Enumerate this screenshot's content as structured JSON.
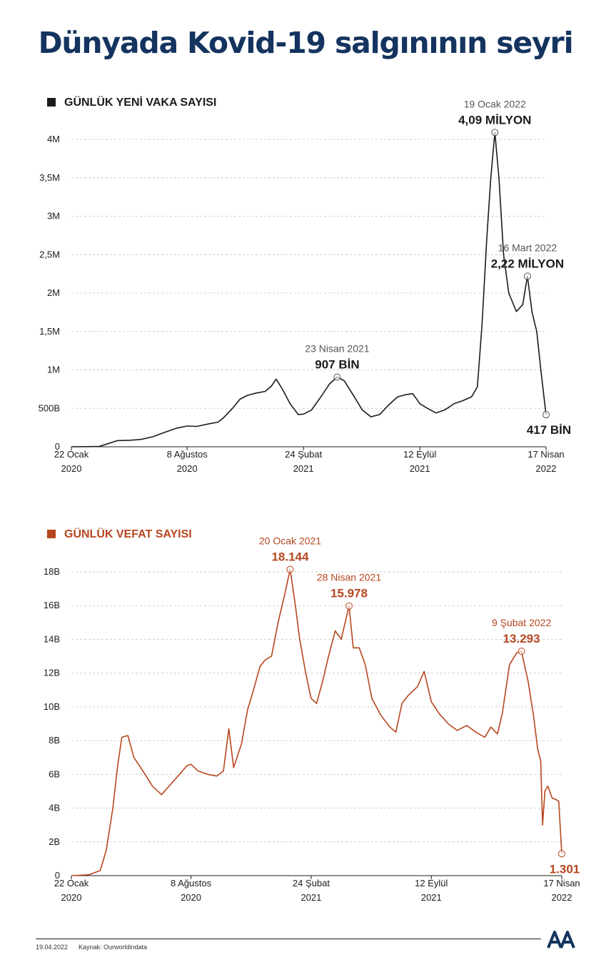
{
  "title": "Dünyada Kovid-19 salgınının seyri",
  "colors": {
    "title": "#14345f",
    "cases": "#1b1b1b",
    "deaths": "#b7461f",
    "grid": "#cfcfcf"
  },
  "chart_data": [
    {
      "type": "line",
      "title": "GÜNLÜK YENİ VAKA SAYISI",
      "color": "#1b1b1b",
      "y_ticks": [
        {
          "value": 0,
          "label": "0"
        },
        {
          "value": 500000,
          "label": "500B"
        },
        {
          "value": 1000000,
          "label": "1M"
        },
        {
          "value": 1500000,
          "label": "1,5M"
        },
        {
          "value": 2000000,
          "label": "2M"
        },
        {
          "value": 2500000,
          "label": "2,5M"
        },
        {
          "value": 3000000,
          "label": "3M"
        },
        {
          "value": 3500000,
          "label": "3,5M"
        },
        {
          "value": 4000000,
          "label": "4M"
        }
      ],
      "ylim": [
        0,
        4000000
      ],
      "xlim": [
        "2020-01-22",
        "2022-04-17"
      ],
      "x_ticks": [
        {
          "date": "2020-01-22",
          "line1": "22 Ocak",
          "line2": "2020"
        },
        {
          "date": "2020-08-08",
          "line1": "8 Ağustos",
          "line2": "2020"
        },
        {
          "date": "2021-02-24",
          "line1": "24 Şubat",
          "line2": "2021"
        },
        {
          "date": "2021-09-12",
          "line1": "12 Eylül",
          "line2": "2021"
        },
        {
          "date": "2022-04-17",
          "line1": "17 Nisan",
          "line2": "2022"
        }
      ],
      "annotations": [
        {
          "date_text": "23 Nisan 2021",
          "value_text": "907 BİN",
          "x": "2021-04-23",
          "y": 907000,
          "pos": "above"
        },
        {
          "date_text": "19 Ocak 2022",
          "value_text": "4,09 MİLYON",
          "x": "2022-01-19",
          "y": 4090000,
          "pos": "above"
        },
        {
          "date_text": "16 Mart 2022",
          "value_text": "2,22 MİLYON",
          "x": "2022-03-16",
          "y": 2220000,
          "pos": "above"
        },
        {
          "date_text": "",
          "value_text": "417 BİN",
          "x": "2022-04-17",
          "y": 417000,
          "pos": "below"
        }
      ],
      "points": [
        [
          "2020-01-22",
          0
        ],
        [
          "2020-02-20",
          2000
        ],
        [
          "2020-03-10",
          5000
        ],
        [
          "2020-03-25",
          40000
        ],
        [
          "2020-04-10",
          80000
        ],
        [
          "2020-05-01",
          85000
        ],
        [
          "2020-05-20",
          95000
        ],
        [
          "2020-06-10",
          130000
        ],
        [
          "2020-07-01",
          190000
        ],
        [
          "2020-07-20",
          240000
        ],
        [
          "2020-08-08",
          270000
        ],
        [
          "2020-08-25",
          265000
        ],
        [
          "2020-09-15",
          300000
        ],
        [
          "2020-09-30",
          320000
        ],
        [
          "2020-10-10",
          380000
        ],
        [
          "2020-10-25",
          500000
        ],
        [
          "2020-11-07",
          620000
        ],
        [
          "2020-11-20",
          670000
        ],
        [
          "2020-12-05",
          700000
        ],
        [
          "2020-12-20",
          720000
        ],
        [
          "2020-12-31",
          790000
        ],
        [
          "2021-01-08",
          880000
        ],
        [
          "2021-01-18",
          760000
        ],
        [
          "2021-02-01",
          560000
        ],
        [
          "2021-02-15",
          420000
        ],
        [
          "2021-02-24",
          425000
        ],
        [
          "2021-03-10",
          480000
        ],
        [
          "2021-03-25",
          640000
        ],
        [
          "2021-04-10",
          820000
        ],
        [
          "2021-04-23",
          907000
        ],
        [
          "2021-05-05",
          860000
        ],
        [
          "2021-05-20",
          680000
        ],
        [
          "2021-06-05",
          480000
        ],
        [
          "2021-06-20",
          390000
        ],
        [
          "2021-07-05",
          420000
        ],
        [
          "2021-07-20",
          540000
        ],
        [
          "2021-08-05",
          650000
        ],
        [
          "2021-08-20",
          680000
        ],
        [
          "2021-08-31",
          690000
        ],
        [
          "2021-09-12",
          560000
        ],
        [
          "2021-09-25",
          500000
        ],
        [
          "2021-10-10",
          440000
        ],
        [
          "2021-10-25",
          480000
        ],
        [
          "2021-11-10",
          560000
        ],
        [
          "2021-11-25",
          600000
        ],
        [
          "2021-12-10",
          650000
        ],
        [
          "2021-12-20",
          780000
        ],
        [
          "2021-12-28",
          1600000
        ],
        [
          "2022-01-05",
          2700000
        ],
        [
          "2022-01-12",
          3500000
        ],
        [
          "2022-01-19",
          4090000
        ],
        [
          "2022-01-26",
          3500000
        ],
        [
          "2022-02-03",
          2500000
        ],
        [
          "2022-02-12",
          2000000
        ],
        [
          "2022-02-25",
          1760000
        ],
        [
          "2022-03-08",
          1850000
        ],
        [
          "2022-03-16",
          2220000
        ],
        [
          "2022-03-24",
          1750000
        ],
        [
          "2022-04-01",
          1500000
        ],
        [
          "2022-04-08",
          1000000
        ],
        [
          "2022-04-17",
          417000
        ]
      ]
    },
    {
      "type": "line",
      "title": "GÜNLÜK VEFAT SAYISI",
      "color": "#b7461f",
      "y_ticks": [
        {
          "value": 0,
          "label": "0"
        },
        {
          "value": 2000,
          "label": "2B"
        },
        {
          "value": 4000,
          "label": "4B"
        },
        {
          "value": 6000,
          "label": "6B"
        },
        {
          "value": 8000,
          "label": "8B"
        },
        {
          "value": 10000,
          "label": "10B"
        },
        {
          "value": 12000,
          "label": "12B"
        },
        {
          "value": 14000,
          "label": "14B"
        },
        {
          "value": 16000,
          "label": "16B"
        },
        {
          "value": 18000,
          "label": "18B"
        }
      ],
      "ylim": [
        0,
        18000
      ],
      "xlim": [
        "2020-01-22",
        "2022-04-17"
      ],
      "x_ticks": [
        {
          "date": "2020-01-22",
          "line1": "22 Ocak",
          "line2": "2020"
        },
        {
          "date": "2020-08-08",
          "line1": "8 Ağustos",
          "line2": "2020"
        },
        {
          "date": "2021-02-24",
          "line1": "24 Şubat",
          "line2": "2021"
        },
        {
          "date": "2021-09-12",
          "line1": "12 Eylül",
          "line2": "2021"
        },
        {
          "date": "2022-04-17",
          "line1": "17 Nisan",
          "line2": "2022"
        }
      ],
      "annotations": [
        {
          "date_text": "20 Ocak 2021",
          "value_text": "18.144",
          "x": "2021-01-20",
          "y": 18144,
          "pos": "above"
        },
        {
          "date_text": "28 Nisan 2021",
          "value_text": "15.978",
          "x": "2021-04-28",
          "y": 15978,
          "pos": "above"
        },
        {
          "date_text": "9 Şubat 2022",
          "value_text": "13.293",
          "x": "2022-02-09",
          "y": 13293,
          "pos": "above"
        },
        {
          "date_text": "",
          "value_text": "1.301",
          "x": "2022-04-17",
          "y": 1301,
          "pos": "below"
        }
      ],
      "points": [
        [
          "2020-01-22",
          0
        ],
        [
          "2020-02-20",
          50
        ],
        [
          "2020-03-10",
          300
        ],
        [
          "2020-03-20",
          1500
        ],
        [
          "2020-03-31",
          4000
        ],
        [
          "2020-04-08",
          6500
        ],
        [
          "2020-04-15",
          8200
        ],
        [
          "2020-04-25",
          8300
        ],
        [
          "2020-05-05",
          7000
        ],
        [
          "2020-05-20",
          6200
        ],
        [
          "2020-06-05",
          5300
        ],
        [
          "2020-06-20",
          4800
        ],
        [
          "2020-07-05",
          5400
        ],
        [
          "2020-07-20",
          6000
        ],
        [
          "2020-08-01",
          6500
        ],
        [
          "2020-08-08",
          6600
        ],
        [
          "2020-08-20",
          6200
        ],
        [
          "2020-09-05",
          6000
        ],
        [
          "2020-09-20",
          5900
        ],
        [
          "2020-10-01",
          6200
        ],
        [
          "2020-10-10",
          8700
        ],
        [
          "2020-10-18",
          6400
        ],
        [
          "2020-10-31",
          7800
        ],
        [
          "2020-11-10",
          9800
        ],
        [
          "2020-11-20",
          11000
        ],
        [
          "2020-12-01",
          12400
        ],
        [
          "2020-12-10",
          12800
        ],
        [
          "2020-12-20",
          13000
        ],
        [
          "2020-12-31",
          15000
        ],
        [
          "2021-01-10",
          16500
        ],
        [
          "2021-01-20",
          18144
        ],
        [
          "2021-01-28",
          16200
        ],
        [
          "2021-02-05",
          14000
        ],
        [
          "2021-02-15",
          12000
        ],
        [
          "2021-02-24",
          10500
        ],
        [
          "2021-03-05",
          10200
        ],
        [
          "2021-03-15",
          11500
        ],
        [
          "2021-03-25",
          13000
        ],
        [
          "2021-04-05",
          14500
        ],
        [
          "2021-04-15",
          14000
        ],
        [
          "2021-04-28",
          15978
        ],
        [
          "2021-05-05",
          13500
        ],
        [
          "2021-05-15",
          13500
        ],
        [
          "2021-05-25",
          12500
        ],
        [
          "2021-06-05",
          10500
        ],
        [
          "2021-06-20",
          9500
        ],
        [
          "2021-07-05",
          8800
        ],
        [
          "2021-07-15",
          8500
        ],
        [
          "2021-07-25",
          10200
        ],
        [
          "2021-08-05",
          10700
        ],
        [
          "2021-08-20",
          11200
        ],
        [
          "2021-08-31",
          12100
        ],
        [
          "2021-09-12",
          10300
        ],
        [
          "2021-09-25",
          9600
        ],
        [
          "2021-10-10",
          9000
        ],
        [
          "2021-10-25",
          8600
        ],
        [
          "2021-11-10",
          8900
        ],
        [
          "2021-11-25",
          8500
        ],
        [
          "2021-12-10",
          8200
        ],
        [
          "2021-12-20",
          8800
        ],
        [
          "2021-12-31",
          8400
        ],
        [
          "2022-01-08",
          9600
        ],
        [
          "2022-01-20",
          12500
        ],
        [
          "2022-02-01",
          13200
        ],
        [
          "2022-02-09",
          13293
        ],
        [
          "2022-02-20",
          11500
        ],
        [
          "2022-03-01",
          9500
        ],
        [
          "2022-03-08",
          7500
        ],
        [
          "2022-03-13",
          6800
        ],
        [
          "2022-03-16",
          3000
        ],
        [
          "2022-03-20",
          5000
        ],
        [
          "2022-03-25",
          5300
        ],
        [
          "2022-04-01",
          4600
        ],
        [
          "2022-04-08",
          4500
        ],
        [
          "2022-04-12",
          4400
        ],
        [
          "2022-04-17",
          1301
        ]
      ]
    }
  ],
  "footer": {
    "date": "19.04.2022",
    "source": "Kaynak: Ourworldindata"
  },
  "logo_text": "AA"
}
